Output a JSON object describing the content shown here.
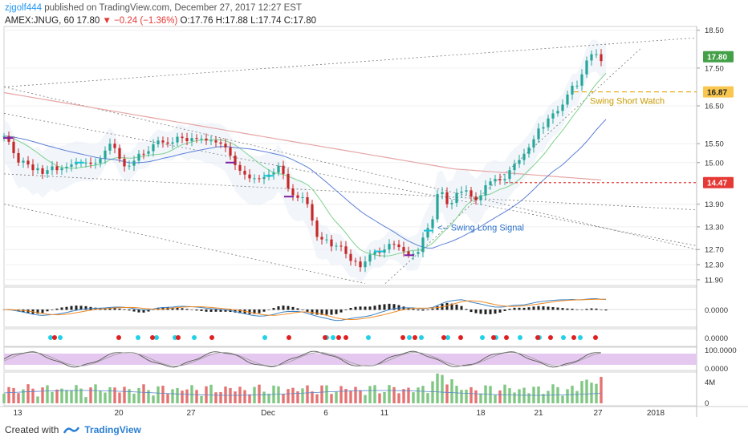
{
  "header": {
    "author": "zjgolf444",
    "published": "published on TradingView.com, December 27, 2017 12:27 EST",
    "symbol": "AMEX:JNUG, 60",
    "last": "17.80",
    "change": "−0.24 (−1.36%)",
    "ohlc_o": "O:17.76",
    "ohlc_h": "H:17.88",
    "ohlc_l": "L:17.74",
    "ohlc_c": "C:17.80"
  },
  "footer": {
    "created_with": "Created with",
    "brand": "TradingView"
  },
  "colors": {
    "up": "#26a69a",
    "down": "#c62828",
    "upVol": "#81c784",
    "downVol": "#e57373",
    "accent": "#2196f3",
    "price_tag": "#43a047",
    "signal_tag": "#f9c74f",
    "level_tag": "#e53935"
  },
  "chart_data": {
    "type": "candlestick",
    "price_axis": {
      "ticks": [
        "18.50",
        "17.50",
        "16.50",
        "15.50",
        "15.00",
        "13.90",
        "13.30",
        "12.70",
        "12.30",
        "11.90"
      ],
      "ylim": [
        11.75,
        18.6
      ]
    },
    "x_axis": {
      "ticks": [
        "13",
        "20",
        "27",
        "Dec",
        "6",
        "11",
        "18",
        "21",
        "27",
        "2018"
      ]
    },
    "price_tags": [
      {
        "label": "17.80",
        "value": 17.8
      },
      {
        "label": "16.87",
        "value": 16.87
      },
      {
        "label": "14.47",
        "value": 14.47
      }
    ],
    "annotations": [
      {
        "text": "Swing Short Watch"
      },
      {
        "text": "<-- Swing Long Signal"
      }
    ],
    "macd_axis": {
      "ticks": [
        "0.0000"
      ]
    },
    "dots_axis": {
      "ticks": [
        "0.0000"
      ]
    },
    "stoch_axis": {
      "ticks": [
        "100.0000",
        "0.0000"
      ]
    },
    "volume_axis": {
      "ticks": [
        "4M",
        "0"
      ]
    },
    "close_path": [
      [
        0,
        15.7
      ],
      [
        6,
        15.55
      ],
      [
        12,
        15.25
      ],
      [
        18,
        15.0
      ],
      [
        24,
        15.05
      ],
      [
        30,
        14.95
      ],
      [
        36,
        14.8
      ],
      [
        42,
        14.85
      ],
      [
        48,
        14.7
      ],
      [
        54,
        14.8
      ],
      [
        60,
        14.9
      ],
      [
        66,
        14.8
      ],
      [
        72,
        14.85
      ],
      [
        80,
        14.9
      ],
      [
        88,
        15.0
      ],
      [
        96,
        15.0
      ],
      [
        104,
        15.0
      ],
      [
        110,
        14.95
      ],
      [
        116,
        15.0
      ],
      [
        122,
        15.15
      ],
      [
        128,
        15.4
      ],
      [
        134,
        15.55
      ],
      [
        140,
        15.3
      ],
      [
        146,
        15.0
      ],
      [
        152,
        14.85
      ],
      [
        158,
        14.95
      ],
      [
        164,
        15.1
      ],
      [
        170,
        15.3
      ],
      [
        176,
        15.2
      ],
      [
        182,
        15.35
      ],
      [
        188,
        15.55
      ],
      [
        194,
        15.6
      ],
      [
        200,
        15.5
      ],
      [
        206,
        15.5
      ],
      [
        212,
        15.55
      ],
      [
        218,
        15.75
      ],
      [
        224,
        15.6
      ],
      [
        230,
        15.55
      ],
      [
        236,
        15.7
      ],
      [
        242,
        15.6
      ],
      [
        248,
        15.65
      ],
      [
        254,
        15.55
      ],
      [
        260,
        15.6
      ],
      [
        266,
        15.5
      ],
      [
        272,
        15.5
      ],
      [
        278,
        15.35
      ],
      [
        284,
        15.1
      ],
      [
        290,
        14.85
      ],
      [
        296,
        14.75
      ],
      [
        302,
        14.65
      ],
      [
        308,
        14.55
      ],
      [
        314,
        14.6
      ],
      [
        320,
        14.55
      ],
      [
        326,
        14.65
      ],
      [
        332,
        14.7
      ],
      [
        338,
        14.75
      ],
      [
        344,
        15.0
      ],
      [
        350,
        14.55
      ],
      [
        356,
        14.2
      ],
      [
        362,
        14.1
      ],
      [
        368,
        14.05
      ],
      [
        374,
        14.1
      ],
      [
        380,
        13.8
      ],
      [
        386,
        13.3
      ],
      [
        392,
        12.9
      ],
      [
        398,
        13.0
      ],
      [
        404,
        12.95
      ],
      [
        410,
        12.7
      ],
      [
        416,
        12.85
      ],
      [
        422,
        12.75
      ],
      [
        428,
        12.5
      ],
      [
        434,
        12.35
      ],
      [
        440,
        12.4
      ],
      [
        446,
        12.15
      ],
      [
        452,
        12.5
      ],
      [
        458,
        12.6
      ],
      [
        464,
        12.65
      ],
      [
        470,
        12.6
      ],
      [
        476,
        12.75
      ],
      [
        482,
        12.9
      ],
      [
        488,
        12.8
      ],
      [
        494,
        12.75
      ],
      [
        500,
        12.6
      ],
      [
        506,
        12.55
      ],
      [
        512,
        12.6
      ],
      [
        518,
        12.65
      ],
      [
        524,
        13.2
      ],
      [
        530,
        13.3
      ],
      [
        536,
        13.6
      ],
      [
        542,
        14.45
      ],
      [
        548,
        14.1
      ],
      [
        554,
        13.8
      ],
      [
        560,
        14.0
      ],
      [
        566,
        14.3
      ],
      [
        572,
        14.2
      ],
      [
        578,
        14.3
      ],
      [
        584,
        14.0
      ],
      [
        590,
        14.0
      ],
      [
        596,
        14.2
      ],
      [
        602,
        14.5
      ],
      [
        608,
        14.5
      ],
      [
        614,
        14.6
      ],
      [
        620,
        14.5
      ],
      [
        626,
        14.6
      ],
      [
        632,
        14.9
      ],
      [
        638,
        15.0
      ],
      [
        644,
        15.1
      ],
      [
        650,
        15.3
      ],
      [
        656,
        15.45
      ],
      [
        662,
        15.7
      ],
      [
        668,
        16.0
      ],
      [
        674,
        15.9
      ],
      [
        680,
        16.3
      ],
      [
        686,
        16.3
      ],
      [
        692,
        16.4
      ],
      [
        698,
        16.6
      ],
      [
        704,
        16.9
      ],
      [
        710,
        17.1
      ],
      [
        716,
        17.0
      ],
      [
        722,
        17.5
      ],
      [
        728,
        17.8
      ],
      [
        734,
        17.9
      ],
      [
        740,
        17.85
      ],
      [
        746,
        17.6
      ],
      [
        750,
        17.8
      ]
    ]
  }
}
